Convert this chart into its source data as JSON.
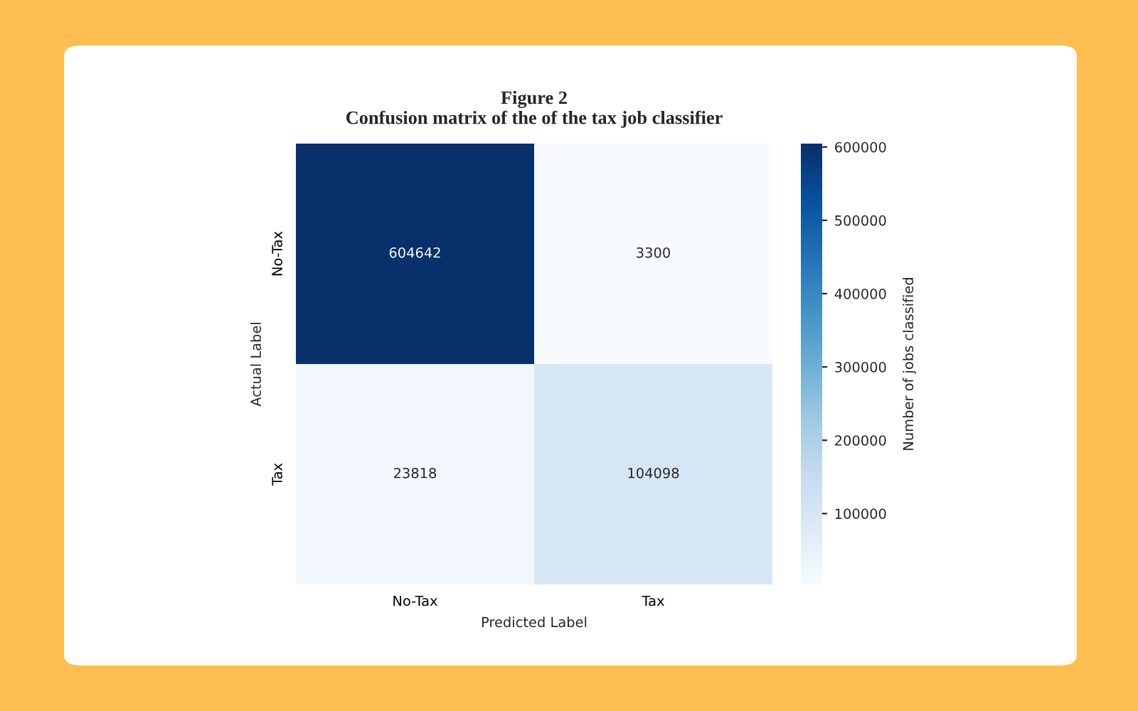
{
  "chart_data": {
    "type": "heatmap",
    "title": "Figure 2\nConfusion matrix of the of the tax job classifier",
    "xlabel": "Predicted Label",
    "ylabel": "Actual Label",
    "clabel": "Number of jobs classified",
    "categories": [
      "No-Tax",
      "Tax"
    ],
    "y_categories": [
      "No-Tax",
      "Tax"
    ],
    "cells": [
      [
        604642,
        3300
      ],
      [
        23818,
        104098
      ]
    ],
    "data_labels": true,
    "clim": [
      3300,
      604642
    ],
    "cticks": [
      100000,
      200000,
      300000,
      400000,
      500000,
      600000
    ]
  }
}
